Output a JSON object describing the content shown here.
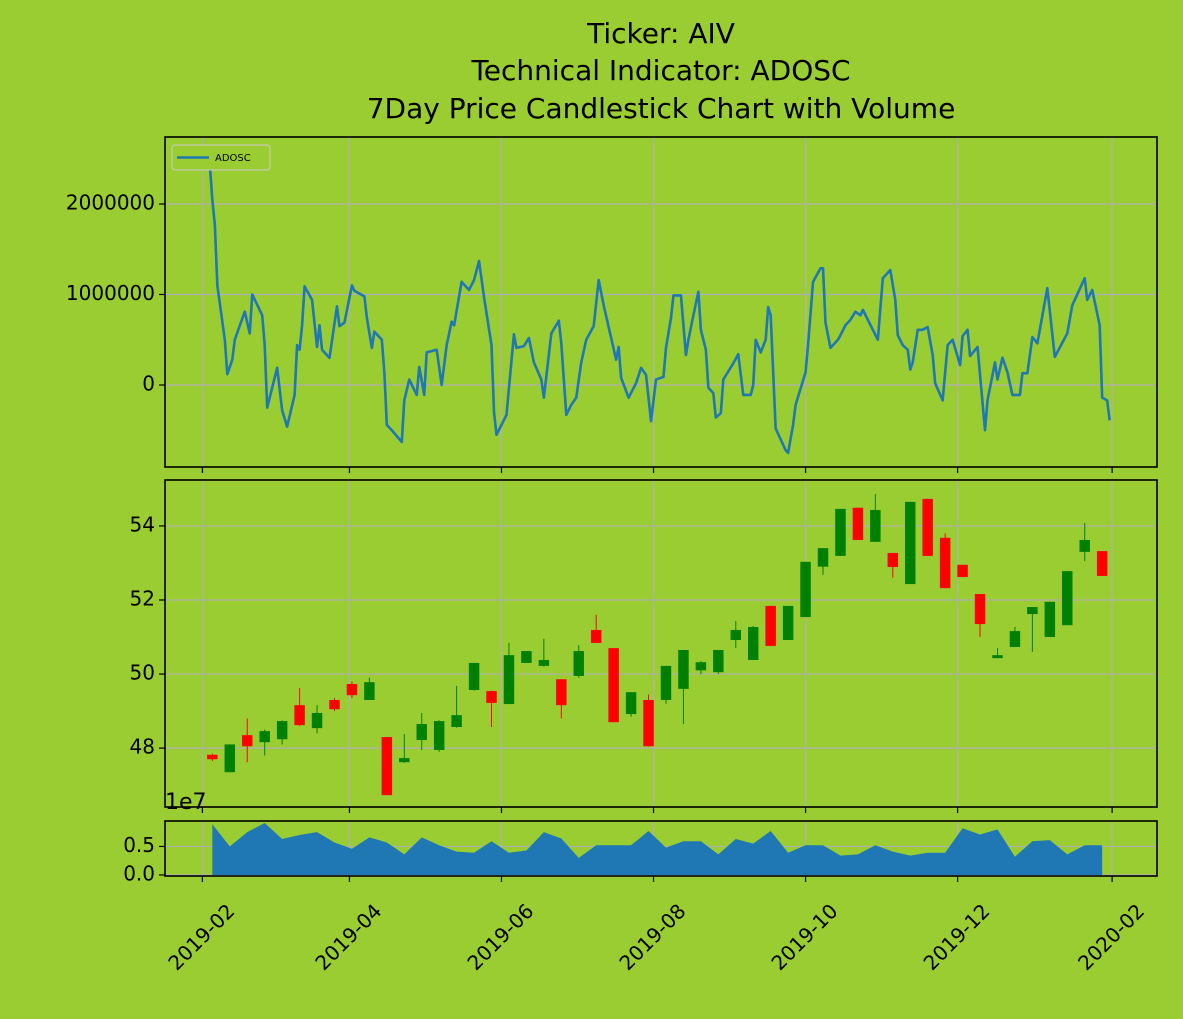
{
  "chart_data": [
    {
      "type": "line",
      "title": [
        "Ticker: AIV",
        "Technical Indicator: ADOSC",
        "7Day Price Candlestick Chart with Volume"
      ],
      "x": [
        "2019-02-04",
        "2019-02-05",
        "2019-02-06",
        "2019-02-07",
        "2019-02-10",
        "2019-02-11",
        "2019-02-13",
        "2019-02-14",
        "2019-02-18",
        "2019-02-20",
        "2019-02-21",
        "2019-02-25",
        "2019-02-26",
        "2019-02-27",
        "2019-03-03",
        "2019-03-05",
        "2019-03-07",
        "2019-03-10",
        "2019-03-11",
        "2019-03-12",
        "2019-03-13",
        "2019-03-14",
        "2019-03-17",
        "2019-03-19",
        "2019-03-20",
        "2019-03-21",
        "2019-03-24",
        "2019-03-27",
        "2019-03-28",
        "2019-03-30",
        "2019-04-02",
        "2019-04-03",
        "2019-04-07",
        "2019-04-08",
        "2019-04-10",
        "2019-04-11",
        "2019-04-14",
        "2019-04-15",
        "2019-04-16",
        "2019-04-18",
        "2019-04-22",
        "2019-04-23",
        "2019-04-25",
        "2019-04-28",
        "2019-04-29",
        "2019-05-01",
        "2019-05-02",
        "2019-05-06",
        "2019-05-08",
        "2019-05-10",
        "2019-05-12",
        "2019-05-13",
        "2019-05-16",
        "2019-05-19",
        "2019-05-21",
        "2019-05-23",
        "2019-05-25",
        "2019-05-28",
        "2019-05-29",
        "2019-05-30",
        "2019-06-03",
        "2019-06-06",
        "2019-06-07",
        "2019-06-10",
        "2019-06-12",
        "2019-06-14",
        "2019-06-17",
        "2019-06-18",
        "2019-06-21",
        "2019-06-24",
        "2019-06-25",
        "2019-06-27",
        "2019-06-29",
        "2019-07-01",
        "2019-07-03",
        "2019-07-05",
        "2019-07-08",
        "2019-07-10",
        "2019-07-12",
        "2019-07-15",
        "2019-07-17",
        "2019-07-18",
        "2019-07-19",
        "2019-07-22",
        "2019-07-25",
        "2019-07-27",
        "2019-07-29",
        "2019-07-31",
        "2019-08-02",
        "2019-08-05",
        "2019-08-06",
        "2019-08-08",
        "2019-08-09",
        "2019-08-12",
        "2019-08-14",
        "2019-08-15",
        "2019-08-17",
        "2019-08-19",
        "2019-08-20",
        "2019-08-22",
        "2019-08-23",
        "2019-08-25",
        "2019-08-26",
        "2019-08-28",
        "2019-08-29",
        "2019-09-02",
        "2019-09-04",
        "2019-09-06",
        "2019-09-09",
        "2019-09-10",
        "2019-09-11",
        "2019-09-13",
        "2019-09-15",
        "2019-09-16",
        "2019-09-17",
        "2019-09-19",
        "2019-09-23",
        "2019-09-24",
        "2019-09-26",
        "2019-09-27",
        "2019-10-01",
        "2019-10-02",
        "2019-10-04",
        "2019-10-07",
        "2019-10-08",
        "2019-10-09",
        "2019-10-11",
        "2019-10-14",
        "2019-10-15",
        "2019-10-17",
        "2019-10-19",
        "2019-10-21",
        "2019-10-23",
        "2019-10-24",
        "2019-10-26",
        "2019-10-28",
        "2019-10-30",
        "2019-11-01",
        "2019-11-04",
        "2019-11-06",
        "2019-11-07",
        "2019-11-09",
        "2019-11-11",
        "2019-11-12",
        "2019-11-13",
        "2019-11-15",
        "2019-11-17",
        "2019-11-19",
        "2019-11-21",
        "2019-11-22",
        "2019-11-25",
        "2019-11-27",
        "2019-11-29",
        "2019-12-02",
        "2019-12-03",
        "2019-12-05",
        "2019-12-06",
        "2019-12-09",
        "2019-12-12",
        "2019-12-13",
        "2019-12-16",
        "2019-12-17",
        "2019-12-19",
        "2019-12-21",
        "2019-12-23",
        "2019-12-26",
        "2019-12-27",
        "2019-12-29",
        "2019-12-31",
        "2020-01-02",
        "2020-01-06",
        "2020-01-09",
        "2020-01-14",
        "2020-01-16",
        "2020-01-21",
        "2020-01-22",
        "2020-01-24",
        "2020-01-27",
        "2020-01-28",
        "2020-01-30",
        "2020-01-31"
      ],
      "series": [
        {
          "name": "ADOSC",
          "color": "#1f77b4",
          "values": [
            2430000,
            2040000,
            1770000,
            1100000,
            500000,
            120000,
            280000,
            500000,
            810000,
            570000,
            1000000,
            770000,
            440000,
            -250000,
            190000,
            -280000,
            -460000,
            -110000,
            440000,
            390000,
            660000,
            1090000,
            940000,
            420000,
            660000,
            390000,
            300000,
            870000,
            650000,
            690000,
            1100000,
            1040000,
            980000,
            740000,
            410000,
            590000,
            500000,
            140000,
            -440000,
            -500000,
            -630000,
            -170000,
            60000,
            -110000,
            200000,
            -110000,
            360000,
            390000,
            0,
            440000,
            700000,
            660000,
            1140000,
            1050000,
            1160000,
            1370000,
            970000,
            440000,
            -300000,
            -550000,
            -330000,
            560000,
            410000,
            430000,
            520000,
            250000,
            60000,
            -140000,
            570000,
            710000,
            460000,
            -330000,
            -220000,
            -140000,
            250000,
            500000,
            650000,
            1160000,
            880000,
            520000,
            280000,
            420000,
            80000,
            -140000,
            20000,
            190000,
            110000,
            -400000,
            60000,
            90000,
            410000,
            740000,
            990000,
            990000,
            330000,
            500000,
            770000,
            1030000,
            610000,
            390000,
            -30000,
            -90000,
            -360000,
            -310000,
            60000,
            240000,
            340000,
            -110000,
            -110000,
            0,
            500000,
            360000,
            500000,
            860000,
            770000,
            -480000,
            -720000,
            -750000,
            -440000,
            -220000,
            140000,
            440000,
            1140000,
            1290000,
            1290000,
            690000,
            410000,
            500000,
            550000,
            660000,
            720000,
            810000,
            770000,
            830000,
            720000,
            610000,
            500000,
            1180000,
            1270000,
            940000,
            550000,
            440000,
            390000,
            170000,
            250000,
            610000,
            610000,
            640000,
            330000,
            20000,
            -170000,
            440000,
            500000,
            220000,
            540000,
            610000,
            320000,
            420000,
            -500000,
            -170000,
            250000,
            60000,
            300000,
            140000,
            -110000,
            -110000,
            130000,
            130000,
            530000,
            460000,
            1070000,
            310000,
            570000,
            880000,
            1180000,
            940000,
            1050000,
            660000,
            -140000,
            -170000,
            -390000
          ]
        }
      ],
      "xlim": [
        "2019-01-17",
        "2020-02-19"
      ],
      "xticks": [
        "2019-02-01",
        "2019-04-01",
        "2019-06-01",
        "2019-08-01",
        "2019-10-01",
        "2019-12-01",
        "2020-02-01"
      ],
      "ylim": [
        -906000,
        2740000
      ],
      "yticks": [
        0,
        1000000,
        2000000
      ],
      "grid": true,
      "legend": "upper left"
    },
    {
      "type": "candlestick",
      "x": [
        "2019-02-05",
        "2019-02-12",
        "2019-02-19",
        "2019-02-26",
        "2019-03-05",
        "2019-03-12",
        "2019-03-19",
        "2019-03-26",
        "2019-04-02",
        "2019-04-09",
        "2019-04-16",
        "2019-04-23",
        "2019-04-30",
        "2019-05-07",
        "2019-05-14",
        "2019-05-21",
        "2019-05-28",
        "2019-06-04",
        "2019-06-11",
        "2019-06-18",
        "2019-06-25",
        "2019-07-02",
        "2019-07-09",
        "2019-07-16",
        "2019-07-23",
        "2019-07-30",
        "2019-08-06",
        "2019-08-13",
        "2019-08-20",
        "2019-08-27",
        "2019-09-03",
        "2019-09-10",
        "2019-09-17",
        "2019-09-24",
        "2019-10-01",
        "2019-10-08",
        "2019-10-15",
        "2019-10-22",
        "2019-10-29",
        "2019-11-05",
        "2019-11-12",
        "2019-11-19",
        "2019-11-26",
        "2019-12-03",
        "2019-12-10",
        "2019-12-17",
        "2019-12-24",
        "2019-12-31",
        "2020-01-07",
        "2020-01-14",
        "2020-01-21",
        "2020-01-28"
      ],
      "open": [
        47.82,
        47.35,
        48.35,
        48.16,
        48.24,
        49.16,
        48.54,
        49.3,
        49.73,
        49.3,
        48.3,
        47.62,
        48.22,
        47.95,
        48.57,
        49.57,
        49.54,
        49.19,
        50.3,
        50.22,
        49.86,
        49.95,
        51.19,
        50.7,
        48.92,
        49.3,
        49.3,
        49.6,
        50.1,
        50.05,
        50.92,
        50.38,
        51.84,
        50.92,
        51.54,
        52.9,
        53.19,
        54.49,
        53.57,
        53.27,
        52.43,
        54.73,
        53.68,
        52.95,
        52.16,
        50.43,
        50.73,
        51.62,
        51.0,
        51.32,
        53.3,
        53.32
      ],
      "high": [
        47.85,
        48.1,
        48.8,
        48.5,
        48.75,
        49.62,
        49.16,
        49.35,
        49.8,
        49.9,
        48.3,
        48.38,
        48.95,
        48.75,
        49.68,
        50.3,
        49.55,
        50.84,
        50.62,
        50.95,
        49.86,
        50.78,
        51.6,
        50.7,
        49.51,
        49.45,
        50.22,
        50.65,
        50.35,
        50.65,
        51.43,
        51.3,
        51.84,
        51.84,
        53.03,
        53.4,
        54.46,
        54.49,
        54.86,
        53.27,
        54.65,
        54.73,
        53.8,
        52.95,
        52.16,
        50.7,
        51.27,
        51.81,
        51.95,
        52.78,
        54.08,
        53.32
      ],
      "low": [
        47.65,
        47.35,
        47.62,
        47.8,
        48.1,
        48.6,
        48.4,
        49.0,
        49.35,
        49.3,
        46.73,
        47.6,
        47.95,
        47.9,
        48.55,
        49.55,
        48.57,
        49.19,
        50.3,
        50.2,
        48.8,
        49.9,
        50.84,
        48.7,
        48.85,
        48.05,
        49.2,
        48.65,
        50.0,
        50.0,
        50.7,
        50.38,
        50.76,
        50.92,
        51.54,
        52.68,
        53.19,
        53.62,
        53.57,
        52.6,
        52.43,
        53.19,
        52.32,
        52.62,
        51.0,
        50.43,
        50.73,
        50.6,
        51.0,
        51.32,
        53.05,
        52.65
      ],
      "close": [
        47.7,
        48.1,
        48.05,
        48.46,
        48.73,
        48.62,
        48.95,
        49.05,
        49.43,
        49.78,
        46.73,
        47.73,
        48.65,
        48.73,
        48.89,
        50.3,
        49.22,
        50.51,
        50.62,
        50.38,
        49.16,
        50.62,
        50.84,
        48.7,
        49.51,
        48.05,
        50.22,
        50.65,
        50.32,
        50.65,
        51.19,
        51.27,
        50.76,
        51.84,
        53.03,
        53.4,
        54.46,
        53.62,
        54.43,
        52.89,
        54.65,
        53.19,
        52.32,
        52.62,
        51.35,
        50.51,
        51.16,
        51.81,
        51.95,
        52.78,
        53.62,
        52.65
      ],
      "up_color": "green",
      "down_color": "red",
      "xlim": [
        "2019-01-17",
        "2020-02-19"
      ],
      "xticks": [
        "2019-02-01",
        "2019-04-01",
        "2019-06-01",
        "2019-08-01",
        "2019-10-01",
        "2019-12-01",
        "2020-02-01"
      ],
      "ylim": [
        46.41,
        55.24
      ],
      "yticks": [
        48,
        50,
        52,
        54
      ],
      "grid": true
    },
    {
      "type": "area",
      "x": [
        "2019-02-05",
        "2019-02-12",
        "2019-02-19",
        "2019-02-26",
        "2019-03-05",
        "2019-03-12",
        "2019-03-19",
        "2019-03-26",
        "2019-04-02",
        "2019-04-09",
        "2019-04-16",
        "2019-04-23",
        "2019-04-30",
        "2019-05-07",
        "2019-05-14",
        "2019-05-21",
        "2019-05-28",
        "2019-06-04",
        "2019-06-11",
        "2019-06-18",
        "2019-06-25",
        "2019-07-02",
        "2019-07-09",
        "2019-07-16",
        "2019-07-23",
        "2019-07-30",
        "2019-08-06",
        "2019-08-13",
        "2019-08-20",
        "2019-08-27",
        "2019-09-03",
        "2019-09-10",
        "2019-09-17",
        "2019-09-24",
        "2019-10-01",
        "2019-10-08",
        "2019-10-15",
        "2019-10-22",
        "2019-10-29",
        "2019-11-05",
        "2019-11-12",
        "2019-11-19",
        "2019-11-26",
        "2019-12-03",
        "2019-12-10",
        "2019-12-17",
        "2019-12-24",
        "2019-12-31",
        "2020-01-07",
        "2020-01-14",
        "2020-01-21",
        "2020-01-28"
      ],
      "values": [
        0.89,
        0.5,
        0.75,
        0.91,
        0.63,
        0.7,
        0.75,
        0.57,
        0.46,
        0.66,
        0.57,
        0.36,
        0.66,
        0.52,
        0.41,
        0.39,
        0.59,
        0.39,
        0.43,
        0.75,
        0.64,
        0.3,
        0.52,
        0.52,
        0.52,
        0.77,
        0.48,
        0.59,
        0.59,
        0.36,
        0.63,
        0.55,
        0.77,
        0.39,
        0.52,
        0.52,
        0.34,
        0.36,
        0.52,
        0.41,
        0.34,
        0.39,
        0.39,
        0.82,
        0.71,
        0.8,
        0.32,
        0.59,
        0.61,
        0.36,
        0.52,
        0.52
      ],
      "color": "#1f77b4",
      "offset_text": "1e7",
      "xlim": [
        "2019-01-17",
        "2020-02-19"
      ],
      "xticks": [
        {
          "value": "2019-02-01",
          "label": "2019-02"
        },
        {
          "value": "2019-04-01",
          "label": "2019-04"
        },
        {
          "value": "2019-06-01",
          "label": "2019-06"
        },
        {
          "value": "2019-08-01",
          "label": "2019-08"
        },
        {
          "value": "2019-10-01",
          "label": "2019-10"
        },
        {
          "value": "2019-12-01",
          "label": "2019-12"
        },
        {
          "value": "2020-02-01",
          "label": "2020-02"
        }
      ],
      "ylim": [
        -0.018,
        0.946
      ],
      "yticks": [
        {
          "value": 0,
          "label": "0.0"
        },
        0.5
      ],
      "grid": true
    }
  ]
}
